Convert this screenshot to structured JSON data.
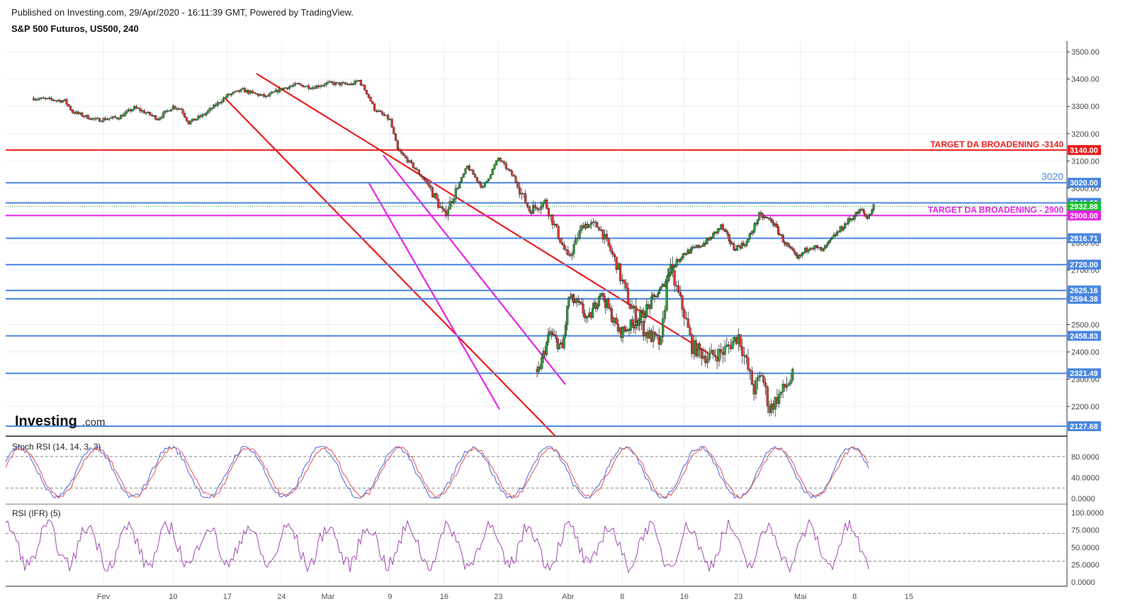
{
  "header": {
    "published": "Published on Investing.com, 29/Apr/2020 - 16:11:39 GMT, Powered by TradingView.",
    "symbol": "S&P 500 Futuros, US500, 240"
  },
  "logo": {
    "brand": "Investing",
    "suffix": ".com"
  },
  "colors": {
    "up": "#2e9e39",
    "down": "#d93a30",
    "red_line": "#ea1d1d",
    "magenta_line": "#e622e6",
    "blue_level": "#4a86e0",
    "grid": "#e9edf2",
    "stoch_k": "#4a67e0",
    "stoch_d": "#e25050",
    "rsi": "#a24ab2"
  },
  "chart_data": [
    {
      "type": "candlestick",
      "title": "S&P 500 Futuros, US500, 240",
      "x_ticks": [
        "Fev",
        "10",
        "17",
        "24",
        "Mar",
        "9",
        "16",
        "23",
        "Abr",
        "8",
        "16",
        "23",
        "Mai",
        "8",
        "15"
      ],
      "x_dates": [
        "2020-02-01",
        "2020-02-10",
        "2020-02-17",
        "2020-02-24",
        "2020-03-01",
        "2020-03-09",
        "2020-03-16",
        "2020-03-23",
        "2020-04-01",
        "2020-04-08",
        "2020-04-16",
        "2020-04-23",
        "2020-05-01",
        "2020-05-08",
        "2020-05-15"
      ],
      "y_ticks": [
        2200,
        2300,
        2400,
        2500,
        2600,
        2700,
        2800,
        2900,
        3000,
        3100,
        3200,
        3300,
        3400,
        3500
      ],
      "ylim": [
        2100,
        3530
      ],
      "price_path": [
        [
          "2020-01-23",
          3330
        ],
        [
          "2020-01-27",
          3320
        ],
        [
          "2020-01-28",
          3280
        ],
        [
          "2020-01-31",
          3250
        ],
        [
          "2020-02-03",
          3260
        ],
        [
          "2020-02-05",
          3295
        ],
        [
          "2020-02-07",
          3270
        ],
        [
          "2020-02-08",
          3255
        ],
        [
          "2020-02-10",
          3300
        ],
        [
          "2020-02-11",
          3290
        ],
        [
          "2020-02-12",
          3240
        ],
        [
          "2020-02-14",
          3270
        ],
        [
          "2020-02-17",
          3340
        ],
        [
          "2020-02-19",
          3360
        ],
        [
          "2020-02-20",
          3350
        ],
        [
          "2020-02-22",
          3335
        ],
        [
          "2020-02-24",
          3365
        ],
        [
          "2020-02-26",
          3380
        ],
        [
          "2020-02-28",
          3370
        ],
        [
          "2020-03-01",
          3385
        ],
        [
          "2020-03-04",
          3380
        ],
        [
          "2020-03-05",
          3395
        ],
        [
          "2020-03-06",
          3350
        ],
        [
          "2020-03-07",
          3290
        ],
        [
          "2020-03-09",
          3250
        ],
        [
          "2020-03-10",
          3140
        ],
        [
          "2020-03-12",
          3080
        ],
        [
          "2020-03-14",
          3010
        ],
        [
          "2020-03-16",
          2900
        ],
        [
          "2020-03-17",
          2960
        ],
        [
          "2020-03-19",
          3080
        ],
        [
          "2020-03-21",
          3000
        ],
        [
          "2020-03-23",
          3110
        ],
        [
          "2020-03-25",
          3040
        ],
        [
          "2020-03-27",
          2920
        ],
        [
          "2020-03-29",
          2950
        ],
        [
          "2020-04-01",
          2740
        ],
        [
          "2020-04-03",
          2870
        ],
        [
          "2020-04-05",
          2860
        ],
        [
          "2020-04-07",
          2740
        ],
        [
          "2020-04-09",
          2570
        ],
        [
          "2020-04-11",
          2470
        ],
        [
          "2020-04-13",
          2430
        ],
        [
          "2020-04-14",
          2720
        ],
        [
          "2020-04-16",
          2540
        ],
        [
          "2020-04-17",
          2420
        ],
        [
          "2020-04-19",
          2380
        ],
        [
          "2020-04-21",
          2400
        ],
        [
          "2020-04-23",
          2460
        ],
        [
          "2020-04-25",
          2260
        ],
        [
          "2020-04-26",
          2320
        ],
        [
          "2020-04-27",
          2190
        ],
        [
          "2020-04-28",
          2230
        ],
        [
          "2020-04-30",
          2310
        ]
      ],
      "series_note": "",
      "horizontal_levels": [
        {
          "value": 3140.0,
          "label": "3140.00",
          "color": "#ea1d1d"
        },
        {
          "value": 3020.0,
          "label": "3020.00",
          "color": "#4a86e0"
        },
        {
          "value": 2946.3,
          "label": "2946.30",
          "color": "#4a86e0"
        },
        {
          "value": 2932.88,
          "label": "2932.88",
          "color": "#17c02c"
        },
        {
          "value": 2900.0,
          "label": "2900.00",
          "color": "#e622e6"
        },
        {
          "value": 2816.71,
          "label": "2816.71",
          "color": "#4a86e0"
        },
        {
          "value": 2720.0,
          "label": "2720.00",
          "color": "#4a86e0"
        },
        {
          "value": 2625.16,
          "label": "2625.16",
          "color": "#4a86e0"
        },
        {
          "value": 2594.38,
          "label": "2594.38",
          "color": "#4a86e0"
        },
        {
          "value": 2458.83,
          "label": "2458.83",
          "color": "#4a86e0"
        },
        {
          "value": 2321.49,
          "label": "2321.49",
          "color": "#4a86e0"
        },
        {
          "value": 2127.68,
          "label": "2127.68",
          "color": "#4a86e0"
        }
      ],
      "annotations": [
        {
          "text": "TARGET DA BROADENING -3140",
          "value": 3140,
          "color": "#ea1d1d"
        },
        {
          "text": "3020",
          "value": 3020,
          "color": "#4a86e0"
        },
        {
          "text": "TARGET DA BROADENING - 2900",
          "value": 2900,
          "color": "#e622e6"
        }
      ]
    },
    {
      "type": "line",
      "title": "Stoch RSI (14, 14, 3, 3)",
      "y_ticks": [
        "80.0000",
        "40.0000",
        "0.0000"
      ],
      "ylim": [
        0,
        100
      ],
      "guides": [
        80,
        20
      ]
    },
    {
      "type": "line",
      "title": "RSI (IFR) (5)",
      "y_ticks": [
        "100.0000",
        "75.0000",
        "50.0000",
        "25.0000",
        "0.0000"
      ],
      "ylim": [
        0,
        100
      ],
      "guides": [
        70,
        30
      ]
    }
  ]
}
